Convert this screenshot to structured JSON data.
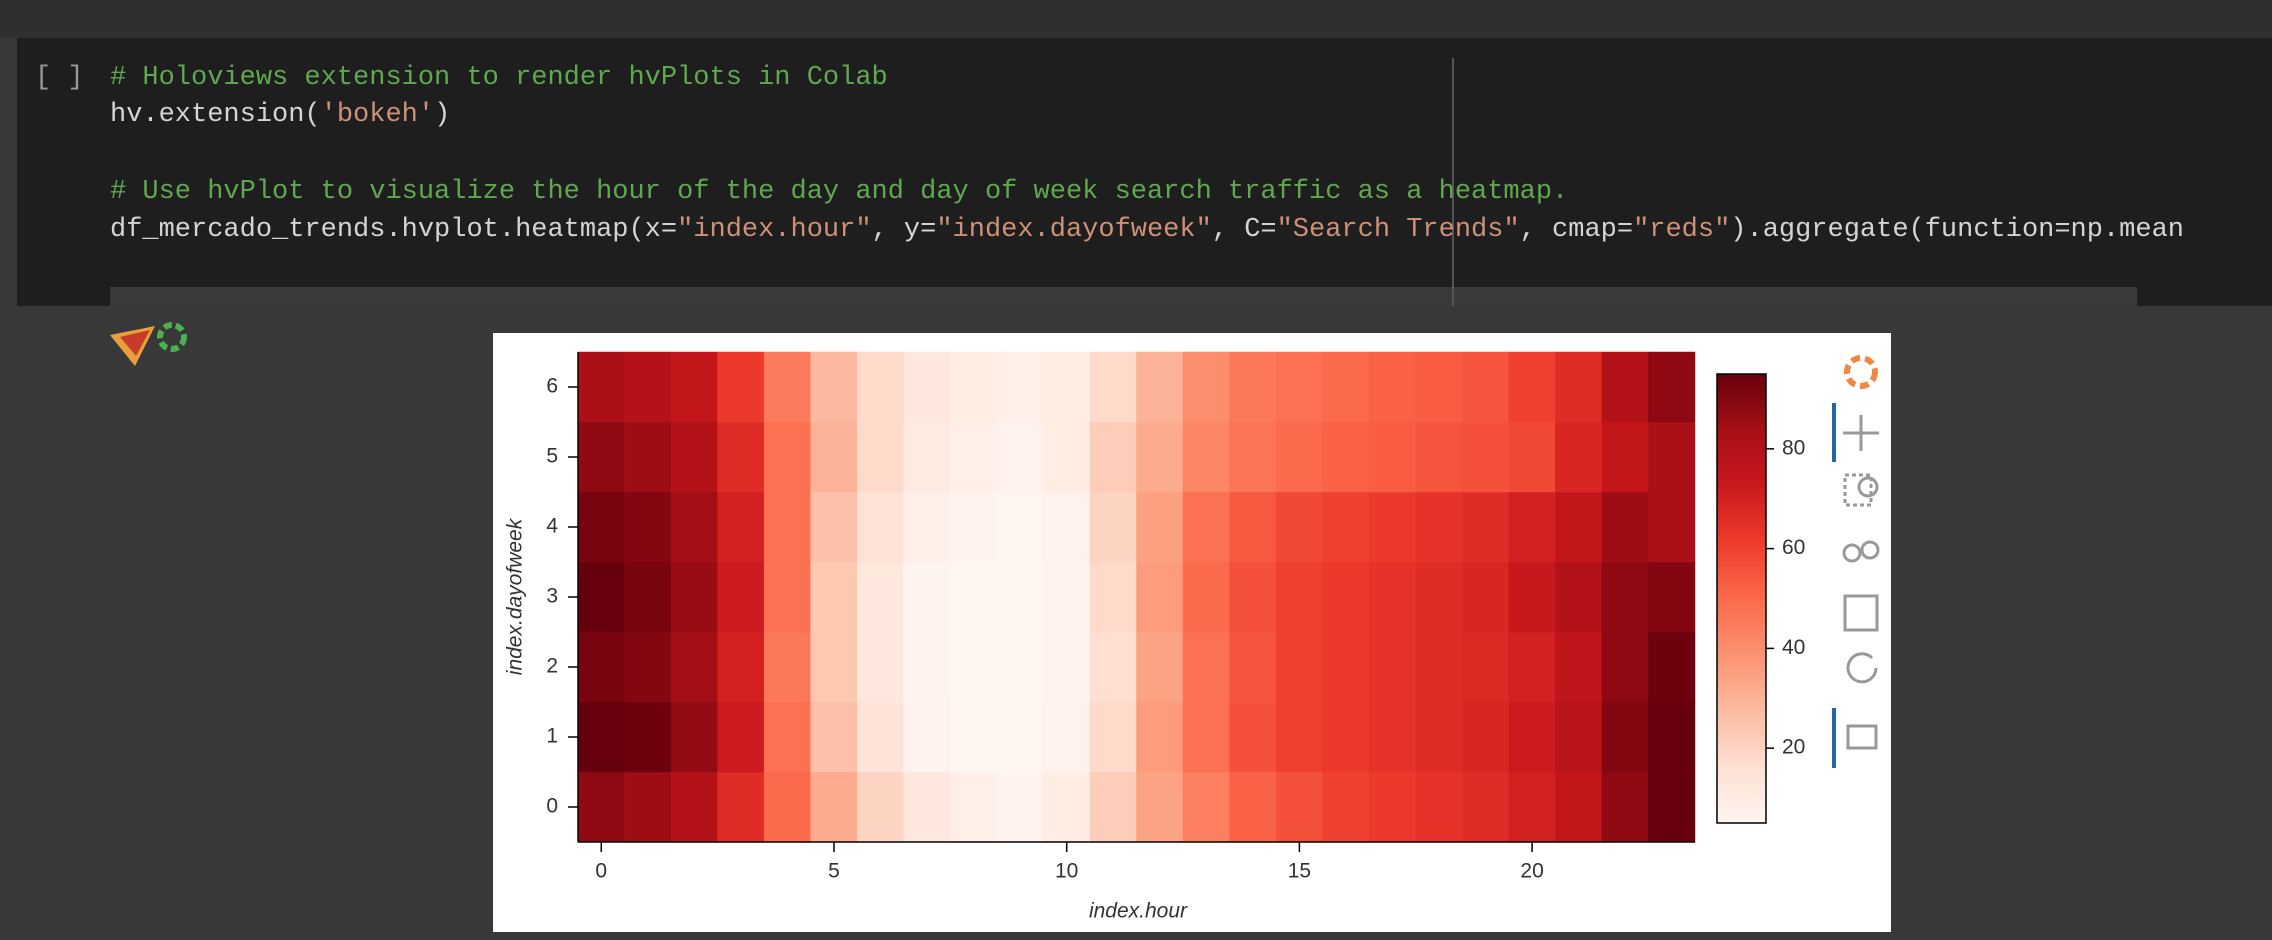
{
  "cell": {
    "prompt": "[ ]",
    "lines": [
      [
        {
          "text": "# Holoviews extension to render hvPlots in Colab",
          "color": "#5fa84f"
        }
      ],
      [
        {
          "text": "hv.extension(",
          "color": "#d4d4d4"
        },
        {
          "text": "'bokeh'",
          "color": "#ce9178"
        },
        {
          "text": ")",
          "color": "#d4d4d4"
        }
      ],
      [],
      [
        {
          "text": "# Use hvPlot to visualize the hour of the day and day of week search traffic as a heatmap.",
          "color": "#5fa84f"
        }
      ],
      [
        {
          "text": "df_mercado_trends.hvplot.heatmap(x=",
          "color": "#d4d4d4"
        },
        {
          "text": "\"index.hour\"",
          "color": "#ce9178"
        },
        {
          "text": ", y=",
          "color": "#d4d4d4"
        },
        {
          "text": "\"index.dayofweek\"",
          "color": "#ce9178"
        },
        {
          "text": ", C=",
          "color": "#d4d4d4"
        },
        {
          "text": "\"Search Trends\"",
          "color": "#ce9178"
        },
        {
          "text": ", cmap=",
          "color": "#d4d4d4"
        },
        {
          "text": "\"reds\"",
          "color": "#ce9178"
        },
        {
          "text": ").aggregate(function=np.mean",
          "color": "#d4d4d4"
        }
      ]
    ]
  },
  "chart_data": {
    "type": "heatmap",
    "xlabel": "index.hour",
    "ylabel": "index.dayofweek",
    "x": [
      0,
      1,
      2,
      3,
      4,
      5,
      6,
      7,
      8,
      9,
      10,
      11,
      12,
      13,
      14,
      15,
      16,
      17,
      18,
      19,
      20,
      21,
      22,
      23
    ],
    "y": [
      0,
      1,
      2,
      3,
      4,
      5,
      6
    ],
    "values": [
      [
        88,
        85,
        80,
        66,
        50,
        32,
        20,
        12,
        8,
        6,
        10,
        22,
        34,
        44,
        52,
        56,
        60,
        62,
        64,
        66,
        70,
        75,
        88,
        95
      ],
      [
        95,
        94,
        87,
        72,
        48,
        26,
        14,
        7,
        5,
        5,
        7,
        18,
        36,
        48,
        56,
        60,
        62,
        64,
        66,
        68,
        72,
        78,
        90,
        95
      ],
      [
        92,
        90,
        84,
        70,
        46,
        24,
        12,
        6,
        5,
        5,
        6,
        16,
        34,
        48,
        55,
        60,
        62,
        64,
        66,
        67,
        70,
        76,
        88,
        94
      ],
      [
        95,
        92,
        86,
        72,
        48,
        24,
        12,
        6,
        5,
        5,
        6,
        18,
        36,
        50,
        56,
        60,
        62,
        64,
        66,
        68,
        73,
        80,
        88,
        90
      ],
      [
        92,
        90,
        84,
        70,
        48,
        26,
        15,
        8,
        6,
        5,
        7,
        20,
        35,
        48,
        54,
        58,
        60,
        62,
        64,
        66,
        70,
        75,
        85,
        82
      ],
      [
        88,
        85,
        80,
        66,
        48,
        30,
        18,
        11,
        8,
        7,
        10,
        22,
        32,
        42,
        47,
        50,
        52,
        53,
        55,
        56,
        58,
        68,
        75,
        82
      ],
      [
        82,
        80,
        75,
        62,
        45,
        28,
        18,
        12,
        10,
        8,
        10,
        18,
        30,
        40,
        46,
        48,
        50,
        52,
        53,
        55,
        60,
        66,
        80,
        88
      ]
    ],
    "xlim": [
      -0.5,
      23.5
    ],
    "ylim": [
      -0.5,
      6.5
    ],
    "xticks": [
      0,
      5,
      10,
      15,
      20
    ],
    "yticks": [
      0,
      1,
      2,
      3,
      4,
      5,
      6
    ],
    "clim": [
      5,
      95
    ],
    "cticks": [
      20,
      40,
      60,
      80
    ],
    "colors": [
      "#fff5f0",
      "#fee0d2",
      "#fcbba1",
      "#fc9272",
      "#fb6a4a",
      "#ef3b2c",
      "#cb181d",
      "#a50f15",
      "#67000d"
    ]
  }
}
